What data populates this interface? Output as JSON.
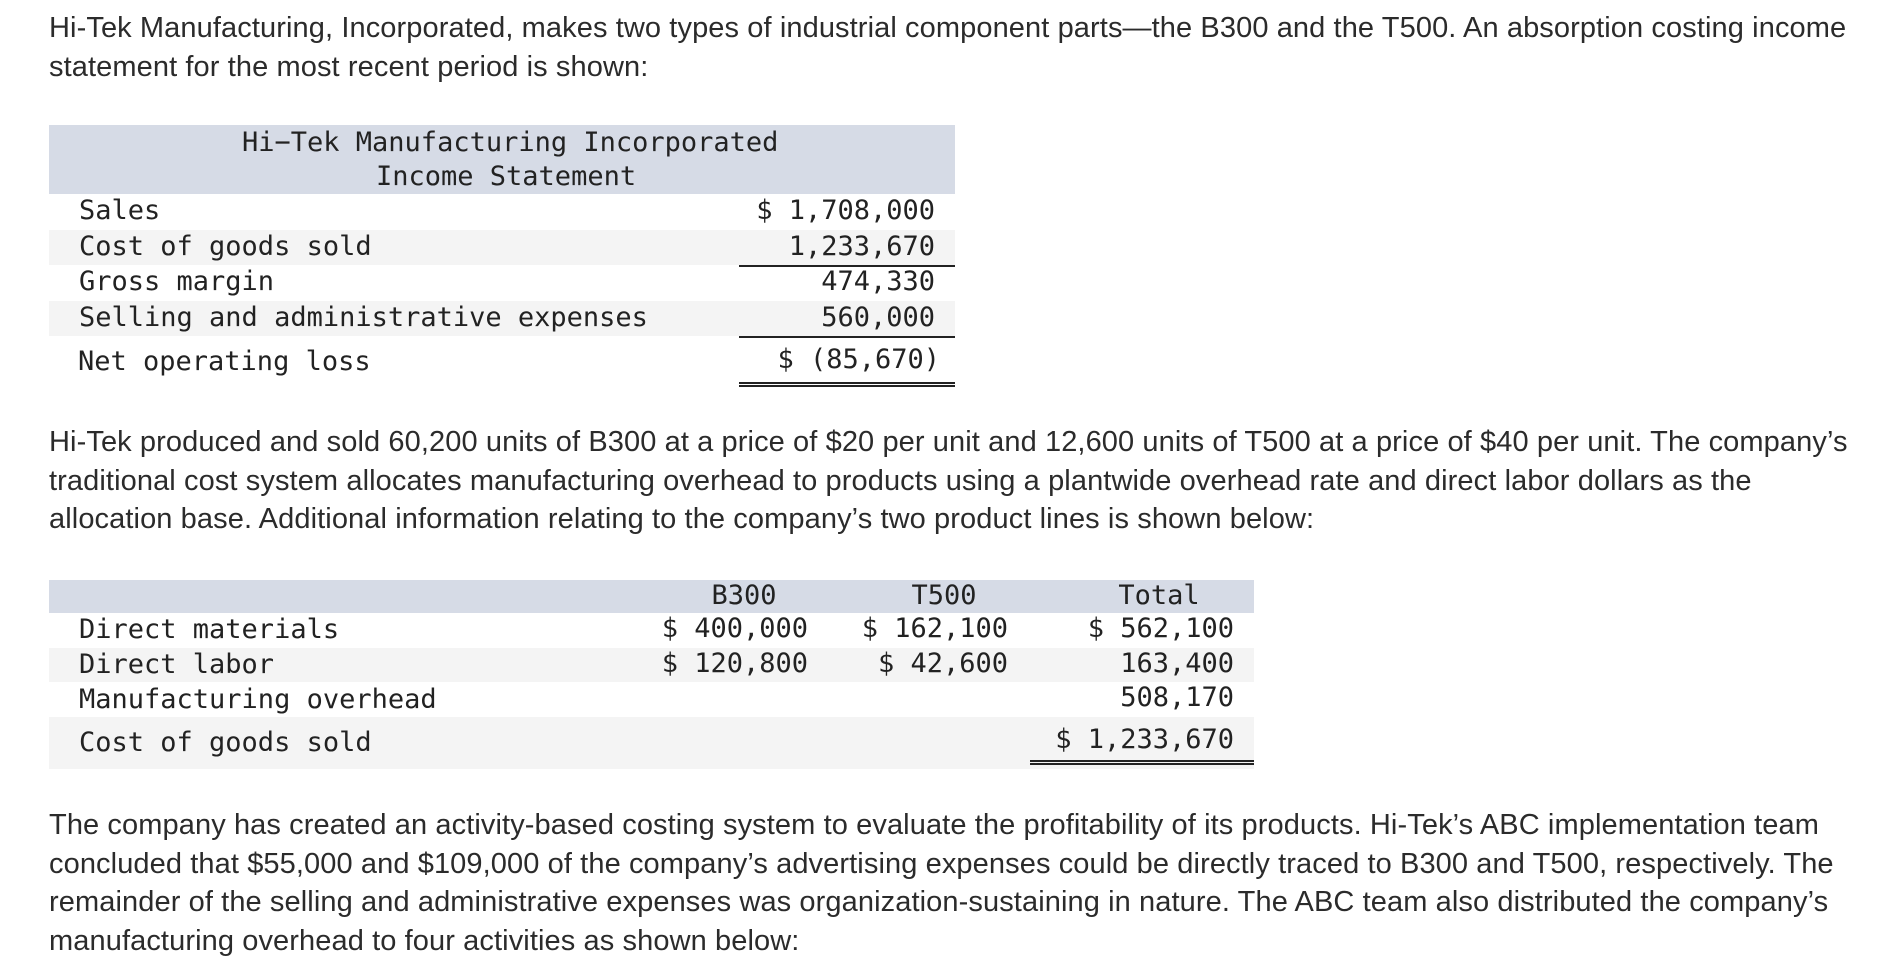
{
  "intro_paragraph": "Hi-Tek Manufacturing, Incorporated, makes two types of industrial component parts—the B300 and the T500. An absorption costing income statement for the most recent period is shown:",
  "income_statement": {
    "title_line1": "Hi−Tek Manufacturing Incorporated",
    "title_line2": "Income Statement",
    "rows": [
      {
        "label": "Sales",
        "value": "$ 1,708,000"
      },
      {
        "label": "Cost of goods sold",
        "value": "1,233,670"
      },
      {
        "label": "Gross margin",
        "value": "474,330"
      },
      {
        "label": "Selling and administrative expenses",
        "value": "560,000"
      },
      {
        "label": "Net operating loss",
        "value": "$ (85,670)"
      }
    ]
  },
  "middle_paragraph": "Hi-Tek produced and sold 60,200 units of B300 at a price of $20 per unit and 12,600 units of T500 at a price of $40 per unit. The company’s traditional cost system allocates manufacturing overhead to products using a plantwide overhead rate and direct labor dollars as the allocation base. Additional information relating to the company’s two product lines is shown below:",
  "product_table": {
    "headers": [
      "B300",
      "T500",
      "Total"
    ],
    "rows": [
      {
        "label": "Direct materials",
        "b300": "$ 400,000",
        "t500": "$ 162,100",
        "total": "$ 562,100"
      },
      {
        "label": "Direct labor",
        "b300": "$ 120,800",
        "t500": "$ 42,600",
        "total": "163,400"
      },
      {
        "label": "Manufacturing overhead",
        "b300": "",
        "t500": "",
        "total": "508,170"
      },
      {
        "label": "Cost of goods sold",
        "b300": "",
        "t500": "",
        "total": "$ 1,233,670"
      }
    ]
  },
  "closing_paragraph": "The company has created an activity-based costing system to evaluate the profitability of its products. Hi-Tek’s ABC implementation team concluded that $55,000 and $109,000 of the company’s advertising expenses could be directly traced to B300 and T500, respectively. The remainder of the selling and administrative expenses was organization-sustaining in nature. The ABC team also distributed the company’s manufacturing overhead to four activities as shown below:"
}
